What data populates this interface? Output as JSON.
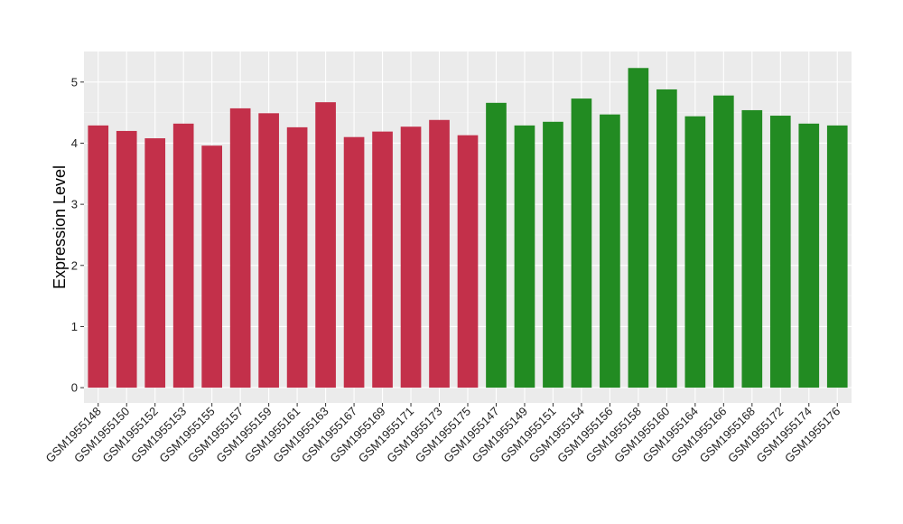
{
  "chart_data": {
    "type": "bar",
    "title": "",
    "xlabel": "",
    "ylabel": "Expression Level",
    "ylim": [
      -0.25,
      5.5
    ],
    "yticks": [
      0,
      1,
      2,
      3,
      4,
      5
    ],
    "grid": true,
    "legend": "none",
    "categories": [
      "GSM1955148",
      "GSM1955150",
      "GSM1955152",
      "GSM1955153",
      "GSM1955155",
      "GSM1955157",
      "GSM1955159",
      "GSM1955161",
      "GSM1955163",
      "GSM1955167",
      "GSM1955169",
      "GSM1955171",
      "GSM1955173",
      "GSM1955175",
      "GSM1955147",
      "GSM1955149",
      "GSM1955151",
      "GSM1955154",
      "GSM1955156",
      "GSM1955158",
      "GSM1955160",
      "GSM1955164",
      "GSM1955166",
      "GSM1955168",
      "GSM1955172",
      "GSM1955174",
      "GSM1955176"
    ],
    "values": [
      4.29,
      4.2,
      4.08,
      4.32,
      3.96,
      4.57,
      4.49,
      4.26,
      4.67,
      4.1,
      4.19,
      4.27,
      4.38,
      4.13,
      4.66,
      4.29,
      4.35,
      4.73,
      4.47,
      5.23,
      4.88,
      4.44,
      4.78,
      4.54,
      4.45,
      4.32,
      4.29
    ],
    "groups": [
      "a",
      "a",
      "a",
      "a",
      "a",
      "a",
      "a",
      "a",
      "a",
      "a",
      "a",
      "a",
      "a",
      "a",
      "b",
      "b",
      "b",
      "b",
      "b",
      "b",
      "b",
      "b",
      "b",
      "b",
      "b",
      "b",
      "b"
    ],
    "colors": {
      "a": "#c3304a",
      "b": "#228b22",
      "panel": "#ebebeb",
      "grid_major": "#ffffff",
      "grid_minor": "#f5f5f5"
    }
  }
}
